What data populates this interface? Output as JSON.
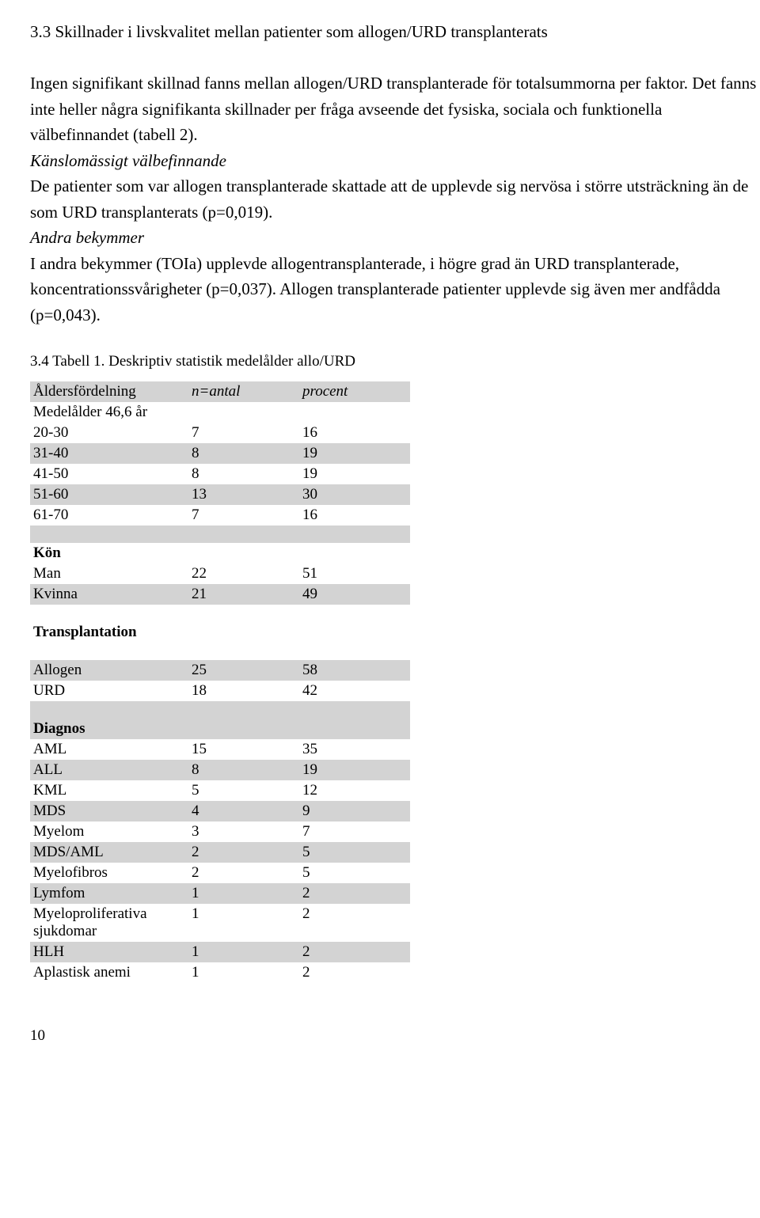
{
  "heading": "3.3 Skillnader i livskvalitet mellan patienter som allogen/URD transplanterats",
  "para1": "Ingen signifikant skillnad fanns mellan allogen/URD transplanterade för totalsummorna per faktor. Det fanns inte heller några signifikanta skillnader per fråga avseende det fysiska, sociala och funktionella välbefinnandet (tabell 2).",
  "sub1_title": "Känslomässigt välbefinnande",
  "sub1_body": "De patienter som var allogen transplanterade skattade att de upplevde sig nervösa i större utsträckning än de som URD transplanterats (p=0,019).",
  "sub2_title": "Andra bekymmer",
  "sub2_body": "I andra bekymmer (TOIa) upplevde allogentransplanterade, i högre grad än URD transplanterade, koncentrationssvårigheter (p=0,037). Allogen transplanterade patienter upplevde sig även mer andfådda (p=0,043).",
  "table_caption": "3.4  Tabell 1. Deskriptiv statistik medelålder allo/URD",
  "table": {
    "header": {
      "c1": "Åldersfördelning",
      "c2": "n=antal",
      "c2_prefix": "n",
      "c2_rest": "=antal",
      "c3": "procent"
    },
    "medel_label": "Medelålder 46,6 år",
    "age_rows": [
      {
        "label": "20-30",
        "n": "7",
        "p": "16",
        "shaded": false
      },
      {
        "label": "31-40",
        "n": "8",
        "p": "19",
        "shaded": true
      },
      {
        "label": "41-50",
        "n": "8",
        "p": "19",
        "shaded": false
      },
      {
        "label": "51-60",
        "n": "13",
        "p": "30",
        "shaded": true
      },
      {
        "label": "61-70",
        "n": "7",
        "p": "16",
        "shaded": false
      }
    ],
    "kon_header": "Kön",
    "kon_rows": [
      {
        "label": "Man",
        "n": "22",
        "p": "51",
        "shaded": false
      },
      {
        "label": "Kvinna",
        "n": "21",
        "p": "49",
        "shaded": true
      }
    ],
    "trans_header": "Transplantation",
    "trans_rows": [
      {
        "label": "Allogen",
        "n": "25",
        "p": "58",
        "shaded": true
      },
      {
        "label": "URD",
        "n": "18",
        "p": "42",
        "shaded": false
      }
    ],
    "diag_header": "Diagnos",
    "diag_rows": [
      {
        "label": "AML",
        "n": "15",
        "p": "35",
        "shaded": false
      },
      {
        "label": "ALL",
        "n": "8",
        "p": "19",
        "shaded": true
      },
      {
        "label": "KML",
        "n": "5",
        "p": "12",
        "shaded": false
      },
      {
        "label": "MDS",
        "n": "4",
        "p": "9",
        "shaded": true
      },
      {
        "label": "Myelom",
        "n": "3",
        "p": "7",
        "shaded": false
      },
      {
        "label": "MDS/AML",
        "n": "2",
        "p": "5",
        "shaded": true
      },
      {
        "label": "Myelofibros",
        "n": "2",
        "p": "5",
        "shaded": false
      },
      {
        "label": "Lymfom",
        "n": "1",
        "p": "2",
        "shaded": true
      },
      {
        "label": "Myeloproliferativa sjukdomar",
        "n": "1",
        "p": "2",
        "shaded": false
      },
      {
        "label": "HLH",
        "n": "1",
        "p": "2",
        "shaded": true
      },
      {
        "label": "Aplastisk anemi",
        "n": "1",
        "p": "2",
        "shaded": false
      }
    ]
  },
  "page_number": "10",
  "colors": {
    "shaded_row": "#d3d3d3",
    "background": "#ffffff",
    "text": "#000000"
  }
}
